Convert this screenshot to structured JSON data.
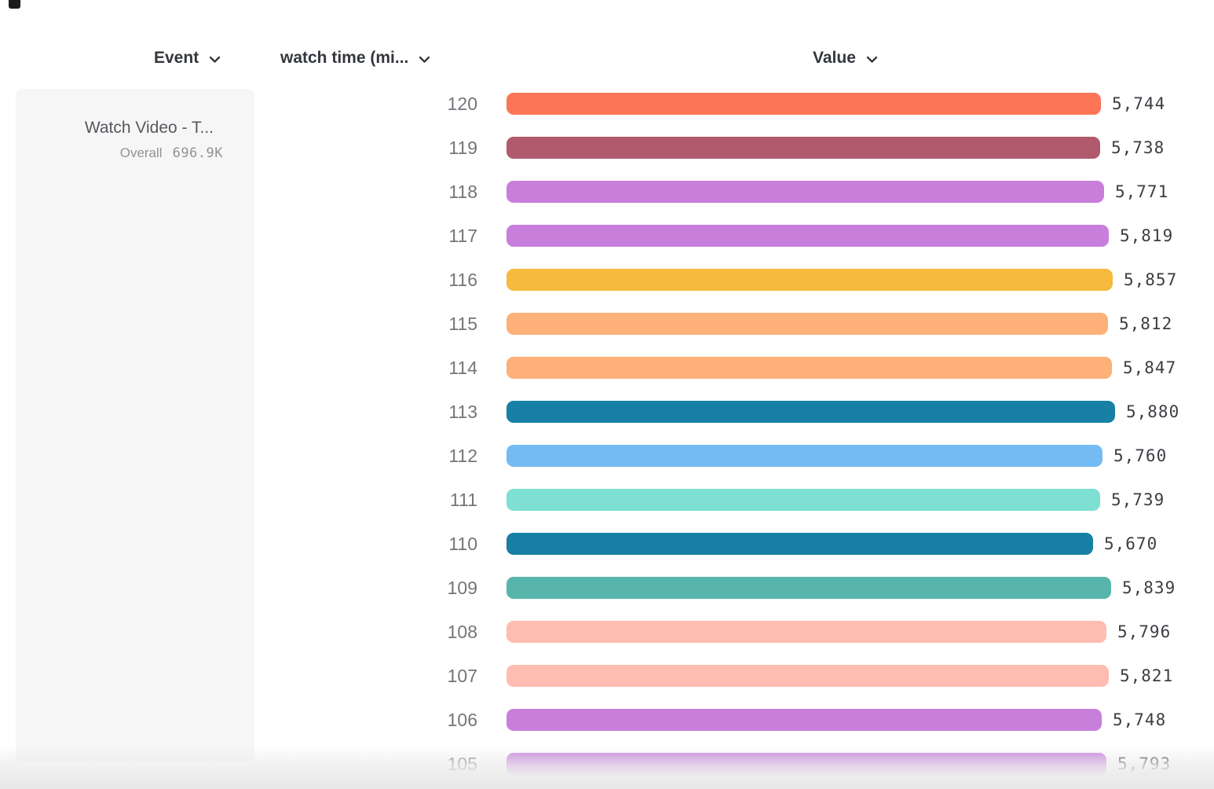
{
  "header": {
    "columns": [
      {
        "id": "event",
        "label": "Event"
      },
      {
        "id": "breakdown",
        "label": "watch time (mi..."
      },
      {
        "id": "value",
        "label": "Value"
      }
    ]
  },
  "event_panel": {
    "event_name": "Watch Video - T...",
    "overall_label": "Overall",
    "overall_value": "696.9K"
  },
  "chart_data": {
    "type": "bar",
    "orientation": "horizontal",
    "title": "",
    "xlabel": "Value",
    "ylabel": "watch time (mi...",
    "categories": [
      120,
      119,
      118,
      117,
      116,
      115,
      114,
      113,
      112,
      111,
      110,
      109,
      108,
      107,
      106,
      105
    ],
    "values": [
      5744,
      5738,
      5771,
      5819,
      5857,
      5812,
      5847,
      5880,
      5760,
      5739,
      5670,
      5839,
      5796,
      5821,
      5748,
      5793
    ],
    "colors": [
      "#FC7557",
      "#B25A6D",
      "#C77FDB",
      "#C77FDB",
      "#F7BA3E",
      "#FDB078",
      "#FDB078",
      "#1780A4",
      "#74BBF3",
      "#7DE0D3",
      "#1780A4",
      "#58B5AC",
      "#FFBCB0",
      "#FFBCB0",
      "#C77FDB",
      "#C77FDB"
    ],
    "value_range": [
      5670,
      5880
    ],
    "grid": false,
    "legend_position": "left"
  }
}
